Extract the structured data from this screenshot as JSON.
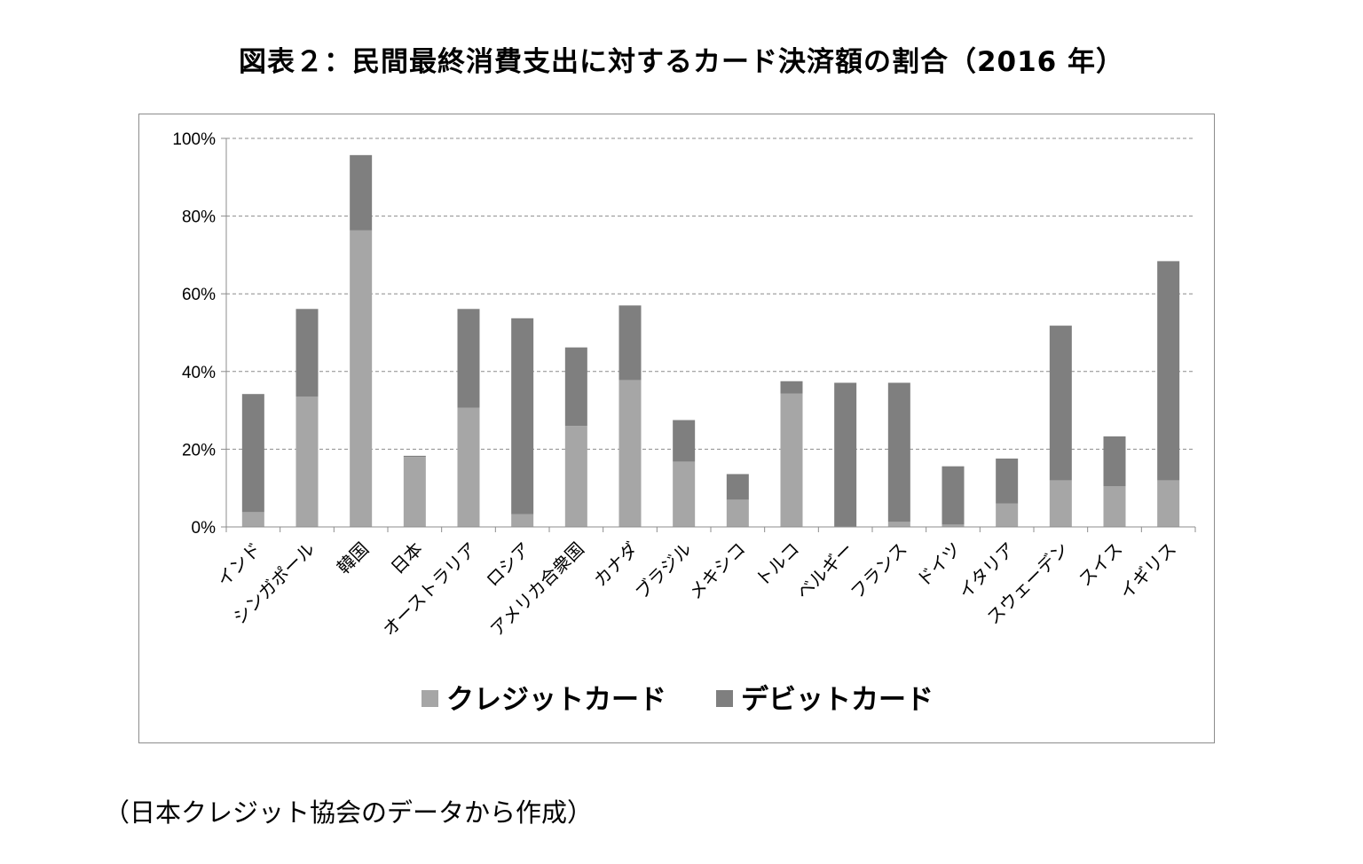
{
  "title": "図表２：民間最終消費支出に対するカード決済額の割合（2016 年）",
  "source_note": "（日本クレジット協会のデータから作成）",
  "colors": {
    "credit": "#a6a6a6",
    "debit": "#7f7f7f",
    "grid": "#8c8c8c",
    "axis": "#8c8c8c"
  },
  "chart_data": {
    "type": "bar",
    "stacked": true,
    "title": "",
    "xlabel": "",
    "ylabel": "",
    "ylim": [
      0,
      100
    ],
    "y_unit": "%",
    "y_ticks": [
      "0%",
      "20%",
      "40%",
      "60%",
      "80%",
      "100%"
    ],
    "y_tick_values": [
      0,
      20,
      40,
      60,
      80,
      100
    ],
    "grid": true,
    "legend_position": "bottom",
    "categories": [
      "インド",
      "シンガポール",
      "韓国",
      "日本",
      "オーストラリア",
      "ロシア",
      "アメリカ合衆国",
      "カナダ",
      "ブラジル",
      "メキシコ",
      "トルコ",
      "ベルギー",
      "フランス",
      "ドイツ",
      "イタリア",
      "スウェーデン",
      "スイス",
      "イギリス"
    ],
    "series": [
      {
        "name": "クレジットカード",
        "values": [
          3.8,
          33.5,
          76.3,
          18.0,
          30.7,
          3.3,
          26.0,
          37.8,
          16.8,
          7.0,
          34.3,
          0.0,
          1.3,
          0.6,
          6.0,
          12.0,
          10.5,
          12.0
        ]
      },
      {
        "name": "デビットカード",
        "values": [
          30.4,
          22.6,
          19.4,
          0.3,
          25.4,
          50.4,
          20.2,
          19.2,
          10.7,
          6.6,
          3.2,
          37.1,
          35.8,
          15.0,
          11.6,
          39.8,
          12.8,
          56.4
        ]
      }
    ]
  }
}
